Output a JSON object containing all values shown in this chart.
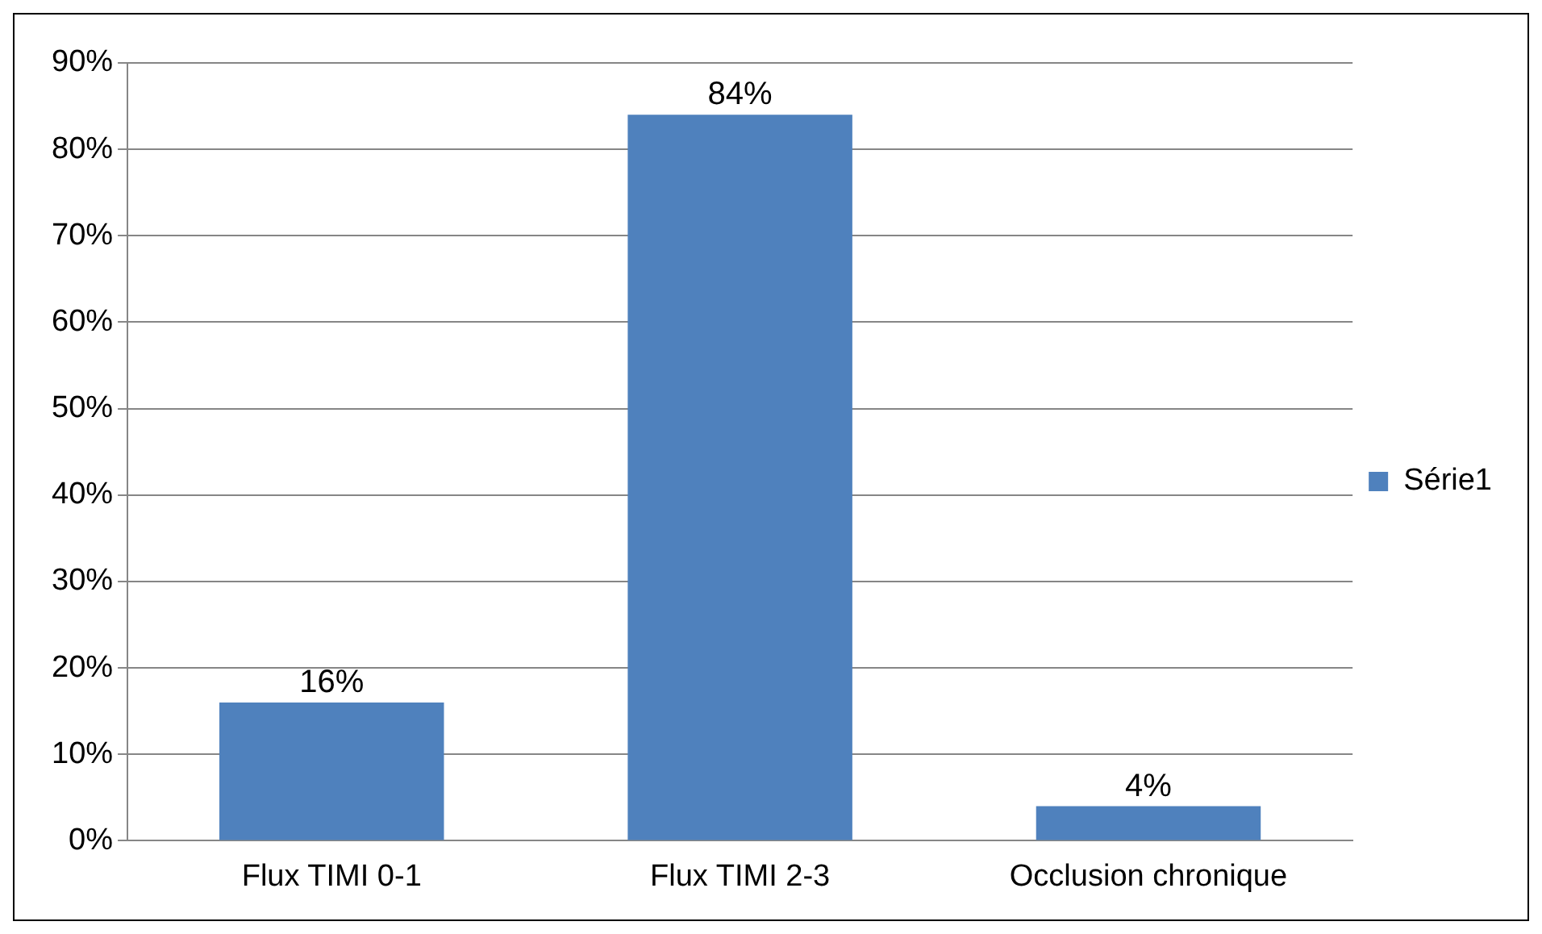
{
  "chart_data": {
    "type": "bar",
    "categories": [
      "Flux TIMI 0-1",
      "Flux TIMI 2-3",
      "Occlusion chronique"
    ],
    "series": [
      {
        "name": "Série1",
        "color": "#4f81bd",
        "values": [
          16,
          84,
          4
        ],
        "value_labels": [
          "16%",
          "84%",
          "4%"
        ]
      }
    ],
    "ylim": [
      0,
      90
    ],
    "yticks": [
      {
        "value": 0,
        "label": "0%"
      },
      {
        "value": 10,
        "label": "10%"
      },
      {
        "value": 20,
        "label": "20%"
      },
      {
        "value": 30,
        "label": "30%"
      },
      {
        "value": 40,
        "label": "40%"
      },
      {
        "value": 50,
        "label": "50%"
      },
      {
        "value": 60,
        "label": "60%"
      },
      {
        "value": 70,
        "label": "70%"
      },
      {
        "value": 80,
        "label": "80%"
      },
      {
        "value": 90,
        "label": "90%"
      }
    ],
    "grid": "y",
    "legend": "right"
  }
}
